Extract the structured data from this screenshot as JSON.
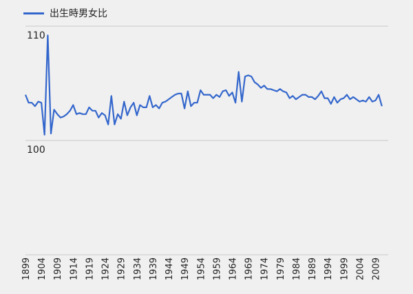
{
  "chart_data": {
    "type": "line",
    "title": "",
    "xlabel": "",
    "ylabel": "",
    "legend_position": "top-left",
    "grid": true,
    "xlim": [
      1899,
      2013
    ],
    "ylim": [
      90,
      110
    ],
    "y_ticks": [
      {
        "value": 110,
        "label": "110"
      },
      {
        "value": 100,
        "label": "100"
      }
    ],
    "x_ticks": [
      "1899",
      "1904",
      "1909",
      "1914",
      "1919",
      "1924",
      "1929",
      "1934",
      "1939",
      "1944",
      "1949",
      "1954",
      "1959",
      "1964",
      "1969",
      "1974",
      "1979",
      "1984",
      "1989",
      "1994",
      "1999",
      "2004",
      "2009"
    ],
    "series": [
      {
        "name": "出生時男女比",
        "color": "#3366cc",
        "points": [
          [
            1899,
            104.0
          ],
          [
            1900,
            103.3
          ],
          [
            1901,
            103.3
          ],
          [
            1902,
            103.0
          ],
          [
            1903,
            103.4
          ],
          [
            1904,
            103.3
          ],
          [
            1905,
            100.5
          ],
          [
            1906,
            109.2
          ],
          [
            1907,
            100.6
          ],
          [
            1908,
            102.7
          ],
          [
            1909,
            102.3
          ],
          [
            1910,
            102.0
          ],
          [
            1911,
            102.1
          ],
          [
            1912,
            102.3
          ],
          [
            1913,
            102.6
          ],
          [
            1914,
            103.1
          ],
          [
            1915,
            102.3
          ],
          [
            1916,
            102.4
          ],
          [
            1917,
            102.3
          ],
          [
            1918,
            102.3
          ],
          [
            1919,
            102.9
          ],
          [
            1920,
            102.6
          ],
          [
            1921,
            102.6
          ],
          [
            1922,
            102.0
          ],
          [
            1923,
            102.4
          ],
          [
            1924,
            102.2
          ],
          [
            1925,
            101.4
          ],
          [
            1926,
            103.9
          ],
          [
            1927,
            101.4
          ],
          [
            1928,
            102.3
          ],
          [
            1929,
            101.9
          ],
          [
            1930,
            103.4
          ],
          [
            1931,
            102.2
          ],
          [
            1932,
            102.9
          ],
          [
            1933,
            103.3
          ],
          [
            1934,
            102.2
          ],
          [
            1935,
            103.1
          ],
          [
            1936,
            102.9
          ],
          [
            1937,
            102.9
          ],
          [
            1938,
            103.9
          ],
          [
            1939,
            102.9
          ],
          [
            1940,
            103.1
          ],
          [
            1941,
            102.8
          ],
          [
            1942,
            103.3
          ],
          [
            1943,
            103.4
          ],
          [
            1944,
            103.6
          ],
          [
            1945,
            103.8
          ],
          [
            1946,
            104.0
          ],
          [
            1947,
            104.1
          ],
          [
            1948,
            104.1
          ],
          [
            1949,
            102.8
          ],
          [
            1950,
            104.3
          ],
          [
            1951,
            103.0
          ],
          [
            1952,
            103.3
          ],
          [
            1953,
            103.3
          ],
          [
            1954,
            104.4
          ],
          [
            1955,
            104.0
          ],
          [
            1956,
            104.0
          ],
          [
            1957,
            104.0
          ],
          [
            1958,
            103.7
          ],
          [
            1959,
            104.0
          ],
          [
            1960,
            103.8
          ],
          [
            1961,
            104.3
          ],
          [
            1962,
            104.4
          ],
          [
            1963,
            103.9
          ],
          [
            1964,
            104.2
          ],
          [
            1965,
            103.3
          ],
          [
            1966,
            106.0
          ],
          [
            1967,
            103.4
          ],
          [
            1968,
            105.6
          ],
          [
            1969,
            105.7
          ],
          [
            1970,
            105.6
          ],
          [
            1971,
            105.1
          ],
          [
            1972,
            104.9
          ],
          [
            1973,
            104.6
          ],
          [
            1974,
            104.8
          ],
          [
            1975,
            104.5
          ],
          [
            1976,
            104.5
          ],
          [
            1977,
            104.4
          ],
          [
            1978,
            104.3
          ],
          [
            1979,
            104.5
          ],
          [
            1980,
            104.3
          ],
          [
            1981,
            104.2
          ],
          [
            1982,
            103.7
          ],
          [
            1983,
            103.9
          ],
          [
            1984,
            103.6
          ],
          [
            1985,
            103.8
          ],
          [
            1986,
            104.0
          ],
          [
            1987,
            104.0
          ],
          [
            1988,
            103.8
          ],
          [
            1989,
            103.8
          ],
          [
            1990,
            103.6
          ],
          [
            1991,
            103.9
          ],
          [
            1992,
            104.3
          ],
          [
            1993,
            103.7
          ],
          [
            1994,
            103.7
          ],
          [
            1995,
            103.2
          ],
          [
            1996,
            103.8
          ],
          [
            1997,
            103.3
          ],
          [
            1998,
            103.6
          ],
          [
            1999,
            103.7
          ],
          [
            2000,
            104.0
          ],
          [
            2001,
            103.6
          ],
          [
            2002,
            103.8
          ],
          [
            2003,
            103.6
          ],
          [
            2004,
            103.4
          ],
          [
            2005,
            103.5
          ],
          [
            2006,
            103.4
          ],
          [
            2007,
            103.8
          ],
          [
            2008,
            103.4
          ],
          [
            2009,
            103.5
          ],
          [
            2010,
            104.0
          ],
          [
            2011,
            103.0
          ]
        ]
      }
    ]
  }
}
